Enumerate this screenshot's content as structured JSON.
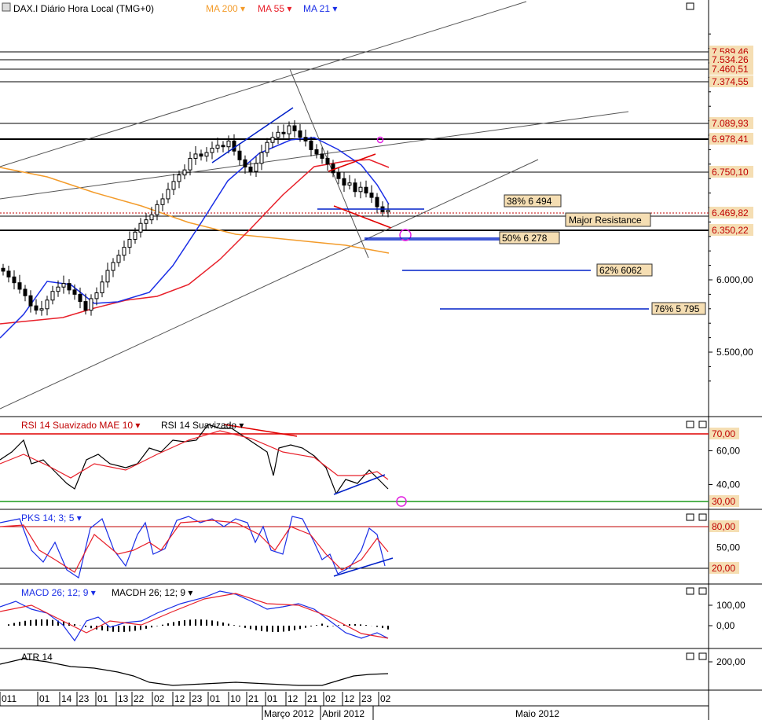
{
  "chart_data": {
    "type": "candlestick",
    "instrument": "DAX.I Diário Hora Local (TMG+0)",
    "colors": {
      "ma200": "#f39b2a",
      "ma55": "#e8202a",
      "ma21": "#1a2ee6",
      "trend_blue": "#0020c8",
      "trend_red": "#e00000",
      "fib_label_bg": "#f5deb3",
      "price_tag_bg": "#f5deb3",
      "rsi_upper": "#e00000",
      "rsi_lower": "#1a9a1a",
      "circle": "#e01ae0"
    },
    "main": {
      "indicators": [
        {
          "name": "MA 200",
          "color": "#f39b2a"
        },
        {
          "name": "MA 55",
          "color": "#e8202a"
        },
        {
          "name": "MA 21",
          "color": "#1a2ee6"
        }
      ],
      "y_ticks": [
        "5.500,00",
        "6.000,00"
      ],
      "price_tags": [
        "7.589,46",
        "7.534,26",
        "7.460,51",
        "7.374,55",
        "7.089,93",
        "6.978,41",
        "6.750,10",
        "6.469,82",
        "6.350,22"
      ],
      "horizontal_levels": [
        7589.46,
        7534.26,
        7460.51,
        7374.55,
        7089.93,
        6978.41,
        6750.1,
        6469.82,
        6350.22
      ],
      "fib_labels": [
        {
          "text": "38%  6 494",
          "value": 6494
        },
        {
          "text": "50%  6 278",
          "value": 6278
        },
        {
          "text": "62%  6062",
          "value": 6062
        },
        {
          "text": "76% 5 795",
          "value": 5795
        }
      ],
      "annotation": "Major Resistance",
      "close_series": [
        6060,
        6020,
        5980,
        5935,
        5890,
        5820,
        5790,
        5800,
        5860,
        5920,
        5950,
        5975,
        5930,
        5900,
        5850,
        5790,
        5870,
        5910,
        5985,
        6065,
        6120,
        6170,
        6225,
        6280,
        6330,
        6390,
        6415,
        6450,
        6520,
        6560,
        6625,
        6680,
        6725,
        6760,
        6840,
        6870,
        6855,
        6880,
        6910,
        6930,
        6920,
        6960,
        6890,
        6830,
        6780,
        6750,
        6805,
        6880,
        6950,
        6985,
        7020,
        7010,
        7065,
        7030,
        6985,
        6960,
        6900,
        6870,
        6840,
        6800,
        6740,
        6700,
        6655,
        6670,
        6610,
        6640,
        6600,
        6570,
        6505,
        6470,
        6480
      ]
    },
    "rsi": {
      "title": "RSI 14 Suavizado MAE 10",
      "title2": "RSI 14 Suavizado",
      "y_ticks": [
        "60,00",
        "40,00"
      ],
      "tags": [
        "70,00",
        "30,00"
      ],
      "levels": [
        70,
        30
      ],
      "ylim": [
        25,
        75
      ]
    },
    "pks": {
      "title": "PKS 14; 3; 5",
      "y_ticks": [
        "50,00"
      ],
      "tags": [
        "80,00",
        "20,00"
      ],
      "levels": [
        80,
        20
      ],
      "ylim": [
        10,
        90
      ]
    },
    "macd": {
      "title": "MACD 26; 12; 9",
      "title2": "MACDH 26; 12; 9",
      "y_ticks": [
        "100,00",
        "0,00"
      ],
      "ylim": [
        -40,
        140
      ]
    },
    "atr": {
      "title": "ATR 14",
      "y_ticks": [
        "200,00"
      ]
    },
    "x_axis": {
      "day_ticks": [
        "011",
        "01",
        "14",
        "23",
        "01",
        "13",
        "22",
        "02",
        "12",
        "23",
        "01",
        "10",
        "21",
        "01",
        "12",
        "21",
        "02",
        "12",
        "23",
        "02"
      ],
      "month_labels": [
        "Março 2012",
        "Abril 2012",
        "Maio 2012"
      ]
    }
  }
}
